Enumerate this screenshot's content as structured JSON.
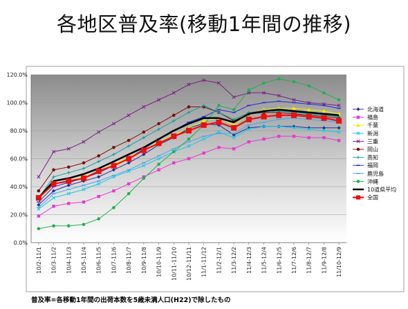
{
  "slide": {
    "title": "各地区普及率(移動1年間の推移)",
    "footnote": "普及率=各移動1年間の出荷本数を5歳未満人口(H22)で除したもの"
  },
  "chart_data": {
    "type": "line",
    "title": "",
    "xlabel": "",
    "ylabel": "",
    "ylim": [
      0,
      120
    ],
    "y_ticks": [
      "0.0%",
      "20.0%",
      "40.0%",
      "60.0%",
      "80.0%",
      "100.0%",
      "120.0%"
    ],
    "grid": true,
    "legend_position": "right",
    "categories": [
      "10/2-11/1",
      "10/3-11/2",
      "10/4-11/3",
      "10/5-11/4",
      "10/6-11/5",
      "10/7-11/6",
      "10/8-11/7",
      "10/9-11/8",
      "10/10-11/9",
      "10/11-11/10",
      "10/12-11/11",
      "11/1-11/12",
      "11/2-12/1",
      "11/3-12/2",
      "11/4-12/3",
      "11/5-12/4",
      "11/6-12/5",
      "11/7-12/6",
      "11/8-12/7",
      "11/9-12/8",
      "11/10-12/9"
    ],
    "series": [
      {
        "name": "北海道",
        "color": "#1f2f9a",
        "marker": "diamond",
        "width": 1,
        "values": [
          27,
          37,
          41,
          44,
          47,
          52,
          57,
          63,
          70,
          75,
          82,
          85,
          84,
          77,
          82,
          83,
          83,
          83,
          82,
          82,
          82
        ]
      },
      {
        "name": "福島",
        "color": "#e838d0",
        "marker": "square",
        "width": 1,
        "values": [
          19,
          26,
          28,
          29,
          33,
          37,
          42,
          47,
          52,
          57,
          60,
          64,
          68,
          67,
          72,
          74,
          76,
          76,
          75,
          75,
          73
        ]
      },
      {
        "name": "千葉",
        "color": "#f0f000",
        "marker": "triangle",
        "width": 1,
        "values": [
          31,
          42,
          44,
          47,
          51,
          56,
          61,
          66,
          72,
          77,
          82,
          87,
          89,
          84,
          92,
          95,
          96,
          96,
          95,
          94,
          92
        ]
      },
      {
        "name": "新潟",
        "color": "#18c8e8",
        "marker": "x",
        "width": 1,
        "values": [
          24,
          32,
          35,
          38,
          42,
          47,
          51,
          55,
          60,
          65,
          69,
          74,
          79,
          75,
          81,
          83,
          83,
          82,
          81,
          80,
          79
        ]
      },
      {
        "name": "三重",
        "color": "#7a1f80",
        "marker": "x",
        "width": 1,
        "values": [
          47,
          65,
          67,
          72,
          79,
          85,
          91,
          97,
          102,
          107,
          113,
          116,
          114,
          104,
          107,
          107,
          105,
          102,
          100,
          99,
          98
        ]
      },
      {
        "name": "岡山",
        "color": "#7a1010",
        "marker": "circle",
        "width": 1,
        "values": [
          37,
          52,
          54,
          57,
          62,
          68,
          73,
          79,
          85,
          91,
          97,
          97,
          93,
          87,
          92,
          93,
          93,
          92,
          91,
          90,
          89
        ]
      },
      {
        "name": "高知",
        "color": "#10a0a0",
        "marker": "plus",
        "width": 1,
        "values": [
          32,
          47,
          50,
          53,
          58,
          63,
          69,
          75,
          81,
          87,
          93,
          98,
          93,
          88,
          93,
          94,
          94,
          93,
          92,
          91,
          90
        ]
      },
      {
        "name": "福岡",
        "color": "#1830d8",
        "marker": "dash",
        "width": 1,
        "values": [
          29,
          40,
          43,
          46,
          50,
          55,
          60,
          67,
          74,
          80,
          86,
          90,
          95,
          93,
          98,
          100,
          101,
          100,
          99,
          98,
          96
        ]
      },
      {
        "name": "鹿児島",
        "color": "#40a8f0",
        "marker": "dash",
        "width": 1,
        "values": [
          25,
          35,
          38,
          41,
          44,
          48,
          52,
          57,
          62,
          67,
          72,
          76,
          78,
          78,
          84,
          86,
          88,
          89,
          88,
          87,
          86
        ]
      },
      {
        "name": "沖縄",
        "color": "#20b050",
        "marker": "circle",
        "width": 1,
        "values": [
          10,
          12,
          12,
          13,
          17,
          25,
          35,
          46,
          56,
          65,
          74,
          84,
          98,
          95,
          109,
          114,
          117,
          115,
          112,
          107,
          102
        ]
      },
      {
        "name": "10道県平均",
        "color": "#000000",
        "marker": "none",
        "width": 2.5,
        "values": [
          32,
          44,
          46,
          49,
          53,
          58,
          63,
          68,
          74,
          80,
          85,
          89,
          89,
          86,
          92,
          94,
          95,
          94,
          93,
          92,
          91
        ]
      },
      {
        "name": "全国",
        "color": "#e81010",
        "marker": "bigsquare",
        "width": 2.2,
        "values": [
          32,
          42,
          44,
          46,
          51,
          55,
          60,
          66,
          71,
          76,
          80,
          84,
          86,
          82,
          88,
          90,
          91,
          91,
          90,
          89,
          87
        ]
      }
    ]
  }
}
